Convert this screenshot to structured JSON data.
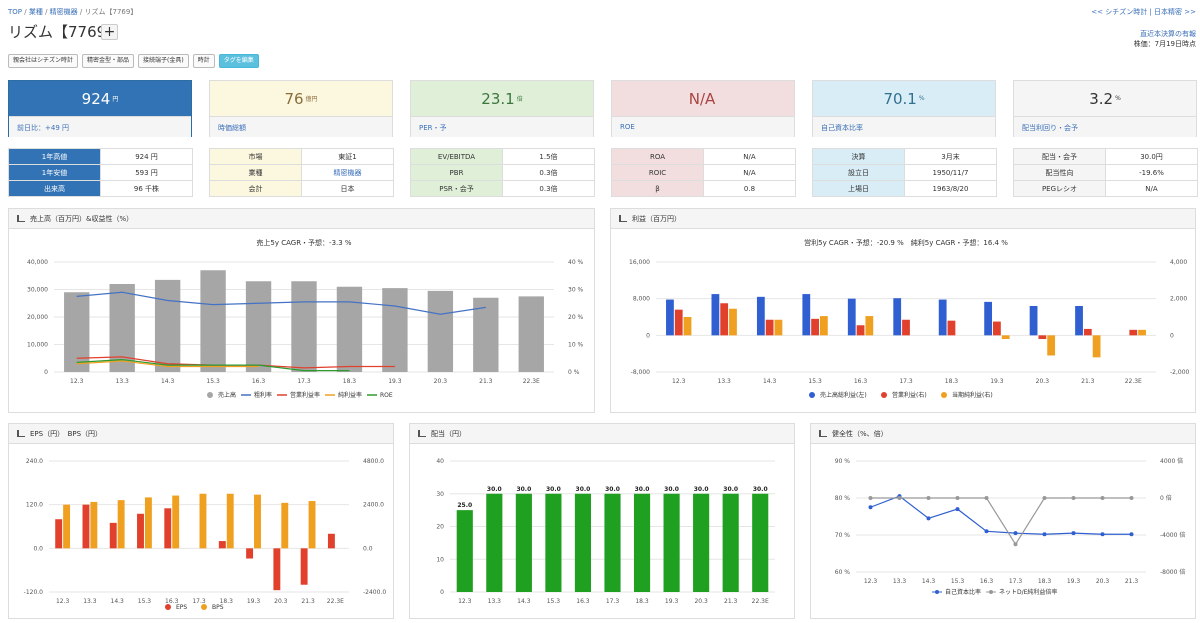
{
  "breadcrumb": {
    "top": "TOP",
    "sector": "業種",
    "industry": "精密機器",
    "current": "リズム【7769】",
    "sep": "/"
  },
  "title": "リズム【7769】",
  "plus": "+",
  "top_right": {
    "link": "<< シチズン時計 | 日本精密 >>",
    "line1": "直近本決算の有報",
    "line2": "株価：7月19日時点"
  },
  "tags": [
    "親会社はシチズン時計",
    "精密金型・部品",
    "接続端子(金具)",
    "時計",
    "タグを編集"
  ],
  "kpis": [
    {
      "value": "924",
      "unit": "円",
      "label": "前日比：+49 円"
    },
    {
      "value": "76",
      "unit": "億円",
      "label": "時価総額"
    },
    {
      "value": "23.1",
      "unit": "倍",
      "label": "PER・予"
    },
    {
      "value": "N/A",
      "unit": "",
      "label": "ROE"
    },
    {
      "value": "70.1",
      "unit": "%",
      "label": "自己資本比率"
    },
    {
      "value": "3.2",
      "unit": "%",
      "label": "配当利回り・会予"
    }
  ],
  "tables": [
    [
      [
        "1年高値",
        "924 円"
      ],
      [
        "1年安値",
        "593 円"
      ],
      [
        "出来高",
        "96 千株"
      ]
    ],
    [
      [
        "市場",
        "東証1"
      ],
      [
        "業種",
        "精密機器"
      ],
      [
        "会計",
        "日本"
      ]
    ],
    [
      [
        "EV/EBITDA",
        "1.5倍"
      ],
      [
        "PBR",
        "0.3倍"
      ],
      [
        "PSR・会予",
        "0.3倍"
      ]
    ],
    [
      [
        "ROA",
        "N/A"
      ],
      [
        "ROIC",
        "N/A"
      ],
      [
        "β",
        "0.8"
      ]
    ],
    [
      [
        "決算",
        "3月末"
      ],
      [
        "設立日",
        "1950/11/7"
      ],
      [
        "上場日",
        "1963/8/20"
      ]
    ],
    [
      [
        "配当・会予",
        "30.0円"
      ],
      [
        "配当性向",
        "-19.6%"
      ],
      [
        "PEGレシオ",
        "N/A"
      ]
    ]
  ],
  "panels": {
    "sales": "売上高（百万円）&収益性（%）",
    "profit": "利益（百万円）",
    "eps": "EPS（円）　BPS（円）",
    "div": "配当（円）",
    "health": "健全性（%、倍）"
  },
  "chart_data": [
    {
      "type": "bar",
      "title": "売上5y CAGR・予想：-3.3 %",
      "categories": [
        "12.3",
        "13.3",
        "14.3",
        "15.3",
        "16.3",
        "17.3",
        "18.3",
        "19.3",
        "20.3",
        "21.3",
        "22.3E"
      ],
      "ylim": [
        0,
        40000
      ],
      "y2lim": [
        0,
        40
      ],
      "yticks": [
        "0",
        "10,000",
        "20,000",
        "30,000",
        "40,000"
      ],
      "y2ticks": [
        "0 %",
        "10 %",
        "20 %",
        "30 %",
        "40 %"
      ],
      "series": [
        {
          "name": "売上高",
          "color": "#a6a6a6",
          "values": [
            29000,
            32000,
            33500,
            37000,
            33000,
            33000,
            31000,
            30500,
            29500,
            27000,
            27500
          ]
        },
        {
          "name": "粗利率",
          "color": "#4472c4",
          "axis": "right",
          "values": [
            27.5,
            29,
            26,
            24.5,
            25,
            25.5,
            25.5,
            24,
            21,
            23.5,
            null
          ]
        },
        {
          "name": "営業利益率",
          "color": "#e0402c",
          "axis": "right",
          "values": [
            5,
            5.5,
            3,
            2.5,
            2.5,
            1.5,
            2,
            2,
            null,
            null,
            null
          ]
        },
        {
          "name": "純利益率",
          "color": "#f0a020",
          "axis": "right",
          "values": [
            3,
            4,
            2,
            2,
            2,
            null,
            null,
            null,
            null,
            null,
            null
          ]
        },
        {
          "name": "ROE",
          "color": "#2e9a2e",
          "axis": "right",
          "values": [
            3.5,
            4.5,
            2.5,
            2.5,
            2.5,
            0.5,
            0.5,
            null,
            null,
            null,
            null
          ]
        }
      ]
    },
    {
      "type": "bar",
      "title": "営利5y CAGR・予想：-20.9 %　純利5y CAGR・予想：16.4 %",
      "categories": [
        "12.3",
        "13.3",
        "14.3",
        "15.3",
        "16.3",
        "17.3",
        "18.3",
        "19.3",
        "20.3",
        "21.3",
        "22.3E"
      ],
      "ylim": [
        -8000,
        16000
      ],
      "y2lim": [
        -2000,
        4000
      ],
      "yticks": [
        "-8,000",
        "0",
        "8,000",
        "16,000"
      ],
      "y2ticks": [
        "-2,000",
        "0",
        "2,000",
        "4,000"
      ],
      "series": [
        {
          "name": "売上高総利益(左)",
          "color": "#2f5fd0",
          "values": [
            7800,
            9000,
            8400,
            9000,
            8000,
            8100,
            7800,
            7300,
            6400,
            6400,
            null
          ]
        },
        {
          "name": "営業利益(右)",
          "color": "#e0402c",
          "values": [
            1400,
            1750,
            850,
            900,
            550,
            850,
            800,
            750,
            -200,
            350,
            300
          ]
        },
        {
          "name": "当期純利益(右)",
          "color": "#f0a020",
          "values": [
            1000,
            1450,
            850,
            1050,
            1050,
            null,
            null,
            -200,
            -1100,
            -1200,
            300
          ]
        }
      ]
    },
    {
      "type": "bar",
      "categories": [
        "12.3",
        "13.3",
        "14.3",
        "15.3",
        "16.3",
        "17.3",
        "18.3",
        "19.3",
        "20.3",
        "21.3",
        "22.3E"
      ],
      "ylim": [
        -120,
        240
      ],
      "y2lim": [
        -2400,
        4800
      ],
      "yticks": [
        "-120.0",
        "0.0",
        "120.0",
        "240.0"
      ],
      "y2ticks": [
        "-2400.0",
        "0.0",
        "2400.0",
        "4800.0"
      ],
      "series": [
        {
          "name": "EPS",
          "color": "#e0402c",
          "values": [
            80,
            120,
            70,
            95,
            110,
            null,
            20,
            -28,
            -115,
            -100,
            40
          ]
        },
        {
          "name": "BPS",
          "color": "#f0a020",
          "values": [
            2400,
            2550,
            2650,
            2800,
            2900,
            3000,
            3000,
            2950,
            2500,
            2600,
            null
          ]
        }
      ]
    },
    {
      "type": "bar",
      "categories": [
        "12.3",
        "13.3",
        "14.3",
        "15.3",
        "16.3",
        "17.3",
        "18.3",
        "19.3",
        "20.3",
        "21.3",
        "22.3E"
      ],
      "ylim": [
        0,
        40
      ],
      "yticks": [
        "0",
        "10",
        "20",
        "30",
        "40"
      ],
      "labels": [
        "25.0",
        "30.0",
        "30.0",
        "30.0",
        "30.0",
        "30.0",
        "30.0",
        "30.0",
        "30.0",
        "30.0",
        "30.0"
      ],
      "series": [
        {
          "name": "配当",
          "color": "#20a020",
          "values": [
            25,
            30,
            30,
            30,
            30,
            30,
            30,
            30,
            30,
            30,
            30
          ]
        }
      ]
    },
    {
      "type": "line",
      "categories": [
        "12.3",
        "13.3",
        "14.3",
        "15.3",
        "16.3",
        "17.3",
        "18.3",
        "19.3",
        "20.3",
        "21.3"
      ],
      "ylim": [
        60,
        90
      ],
      "y2lim": [
        -8000,
        4000
      ],
      "yticks": [
        "60 %",
        "70 %",
        "80 %",
        "90 %"
      ],
      "y2ticks": [
        "-8000 倍",
        "-4000 倍",
        "0 倍",
        "4000 倍"
      ],
      "series": [
        {
          "name": "自己資本比率",
          "color": "#2f5fd0",
          "values": [
            77.5,
            80.5,
            74.5,
            77,
            71,
            70.5,
            70.2,
            70.5,
            70.2,
            70.2
          ]
        },
        {
          "name": "ネットD/E純利益倍率",
          "color": "#999999",
          "axis": "right",
          "values": [
            0,
            0,
            0,
            0,
            0,
            -5000,
            0,
            0,
            0,
            0
          ]
        }
      ]
    }
  ]
}
